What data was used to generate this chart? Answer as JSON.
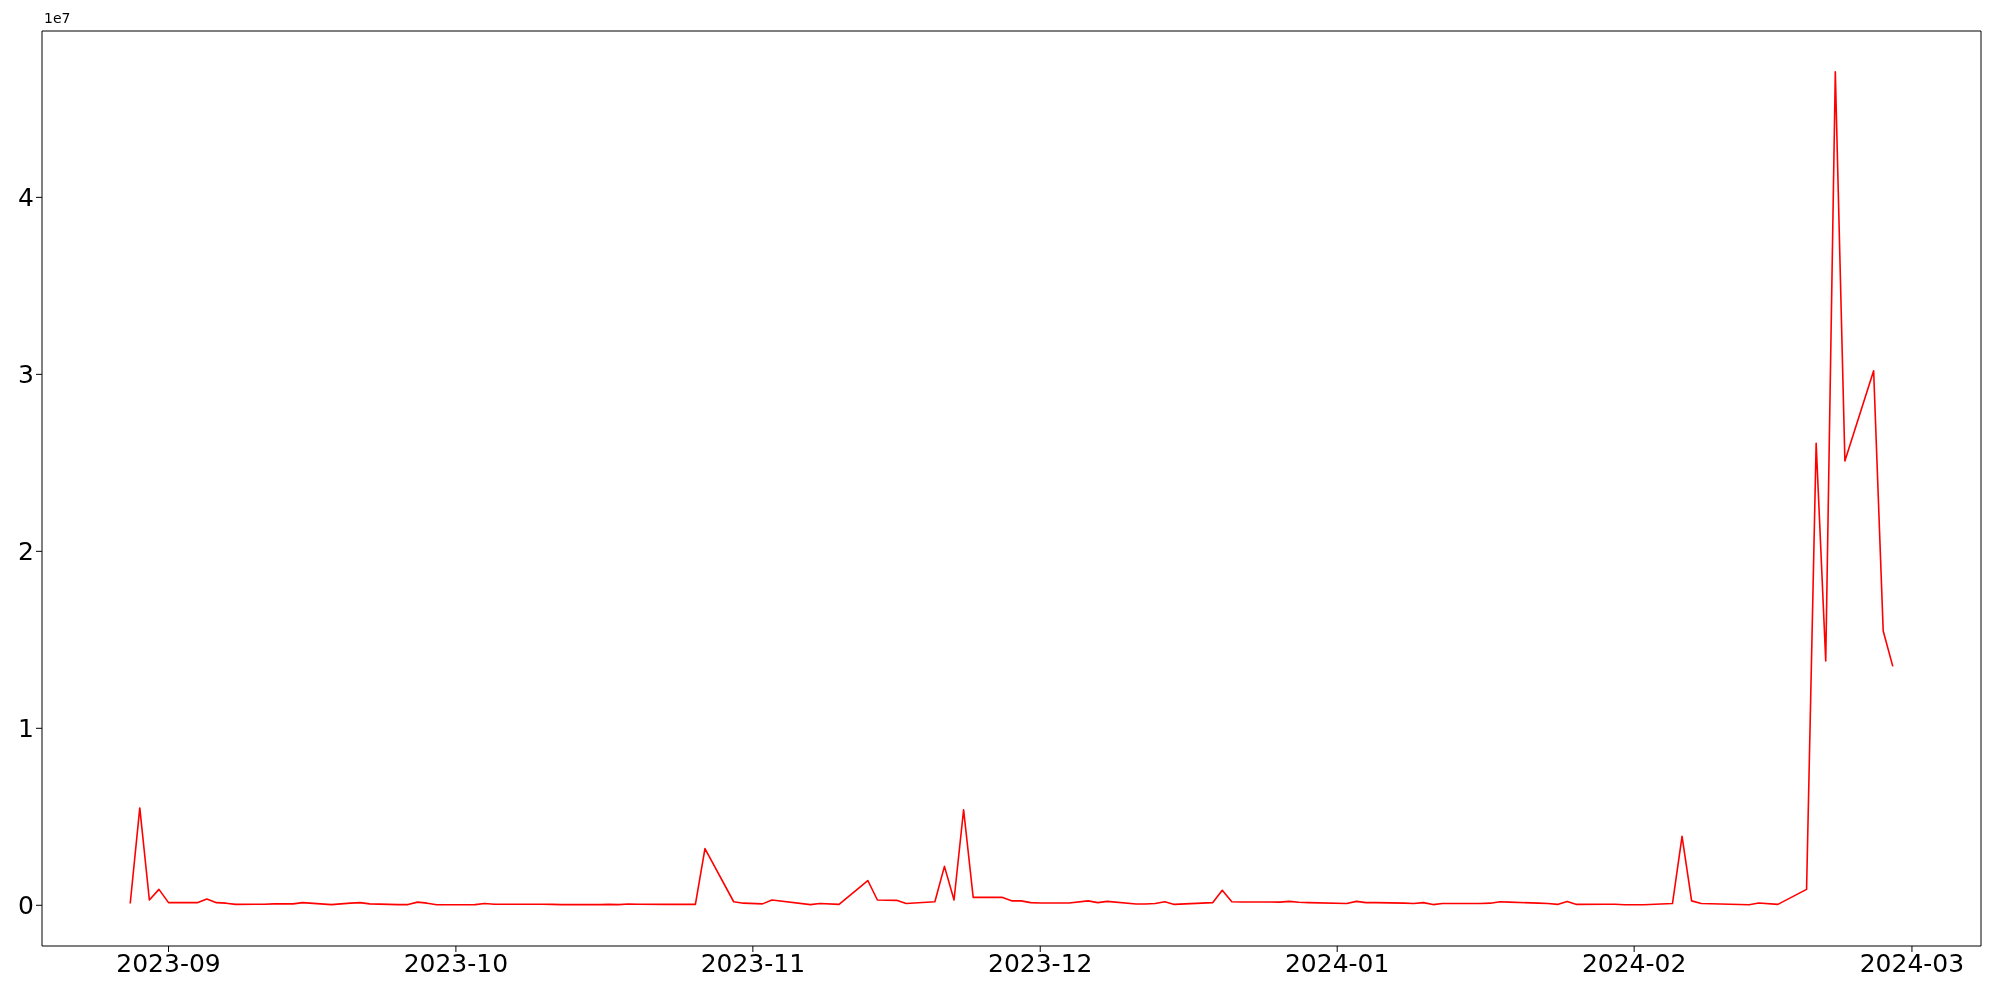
{
  "chart_data": {
    "type": "line",
    "annotations": [
      "1e7"
    ],
    "x": [
      "2023-08-28",
      "2023-08-29",
      "2023-08-30",
      "2023-08-31",
      "2023-09-01",
      "2023-09-04",
      "2023-09-05",
      "2023-09-06",
      "2023-09-07",
      "2023-09-08",
      "2023-09-11",
      "2023-09-12",
      "2023-09-13",
      "2023-09-14",
      "2023-09-15",
      "2023-09-18",
      "2023-09-19",
      "2023-09-20",
      "2023-09-21",
      "2023-09-22",
      "2023-09-25",
      "2023-09-26",
      "2023-09-27",
      "2023-09-28",
      "2023-09-29",
      "2023-10-02",
      "2023-10-03",
      "2023-10-04",
      "2023-10-05",
      "2023-10-06",
      "2023-10-09",
      "2023-10-10",
      "2023-10-11",
      "2023-10-12",
      "2023-10-13",
      "2023-10-16",
      "2023-10-17",
      "2023-10-18",
      "2023-10-19",
      "2023-10-20",
      "2023-10-23",
      "2023-10-24",
      "2023-10-25",
      "2023-10-26",
      "2023-10-27",
      "2023-10-30",
      "2023-10-31",
      "2023-11-02",
      "2023-11-03",
      "2023-11-07",
      "2023-11-08",
      "2023-11-10",
      "2023-11-13",
      "2023-11-14",
      "2023-11-16",
      "2023-11-17",
      "2023-11-20",
      "2023-11-21",
      "2023-11-22",
      "2023-11-23",
      "2023-11-24",
      "2023-11-27",
      "2023-11-28",
      "2023-11-29",
      "2023-11-30",
      "2023-12-01",
      "2023-12-04",
      "2023-12-06",
      "2023-12-07",
      "2023-12-08",
      "2023-12-11",
      "2023-12-12",
      "2023-12-13",
      "2023-12-14",
      "2023-12-15",
      "2023-12-19",
      "2023-12-20",
      "2023-12-21",
      "2023-12-22",
      "2023-12-26",
      "2023-12-27",
      "2023-12-28",
      "2023-12-29",
      "2024-01-02",
      "2024-01-03",
      "2024-01-04",
      "2024-01-05",
      "2024-01-08",
      "2024-01-09",
      "2024-01-10",
      "2024-01-11",
      "2024-01-12",
      "2024-01-16",
      "2024-01-17",
      "2024-01-18",
      "2024-01-19",
      "2024-01-22",
      "2024-01-23",
      "2024-01-24",
      "2024-01-25",
      "2024-01-26",
      "2024-01-29",
      "2024-01-30",
      "2024-01-31",
      "2024-02-01",
      "2024-02-02",
      "2024-02-05",
      "2024-02-06",
      "2024-02-07",
      "2024-02-08",
      "2024-02-13",
      "2024-02-14",
      "2024-02-16",
      "2024-02-19",
      "2024-02-20",
      "2024-02-21",
      "2024-02-22",
      "2024-02-23",
      "2024-02-26",
      "2024-02-27",
      "2024-02-28"
    ],
    "values": [
      0.01,
      0.55,
      0.03,
      0.09,
      0.015,
      0.015,
      0.035,
      0.015,
      0.012,
      0.005,
      0.006,
      0.008,
      0.008,
      0.008,
      0.015,
      0.004,
      0.008,
      0.012,
      0.015,
      0.008,
      0.004,
      0.004,
      0.018,
      0.012,
      0.003,
      0.003,
      0.004,
      0.01,
      0.006,
      0.006,
      0.006,
      0.006,
      0.005,
      0.004,
      0.004,
      0.004,
      0.005,
      0.004,
      0.007,
      0.006,
      0.005,
      0.005,
      0.005,
      0.005,
      0.32,
      0.02,
      0.012,
      0.008,
      0.03,
      0.004,
      0.01,
      0.005,
      0.14,
      0.03,
      0.028,
      0.01,
      0.02,
      0.22,
      0.03,
      0.54,
      0.045,
      0.045,
      0.025,
      0.025,
      0.015,
      0.013,
      0.013,
      0.025,
      0.015,
      0.022,
      0.007,
      0.007,
      0.01,
      0.02,
      0.005,
      0.015,
      0.085,
      0.02,
      0.019,
      0.018,
      0.022,
      0.017,
      0.015,
      0.01,
      0.022,
      0.015,
      0.015,
      0.012,
      0.01,
      0.015,
      0.004,
      0.01,
      0.01,
      0.012,
      0.02,
      0.018,
      0.012,
      0.01,
      0.005,
      0.022,
      0.005,
      0.006,
      0.006,
      0.003,
      0.003,
      0.003,
      0.01,
      0.39,
      0.025,
      0.01,
      0.003,
      0.013,
      0.005,
      0.09,
      2.61,
      1.38,
      4.71,
      2.51,
      3.02,
      1.55,
      1.35
    ],
    "color": "#ff0000",
    "xlim": [
      "2023-08-18T19:00",
      "2024-03-08T05:00"
    ],
    "xticks": [
      "2023-09",
      "2023-10",
      "2023-11",
      "2023-12",
      "2024-01",
      "2024-02",
      "2024-03"
    ],
    "ylim": [
      -0.23,
      4.94
    ],
    "yticks": [
      0,
      1,
      2,
      3,
      4
    ]
  }
}
